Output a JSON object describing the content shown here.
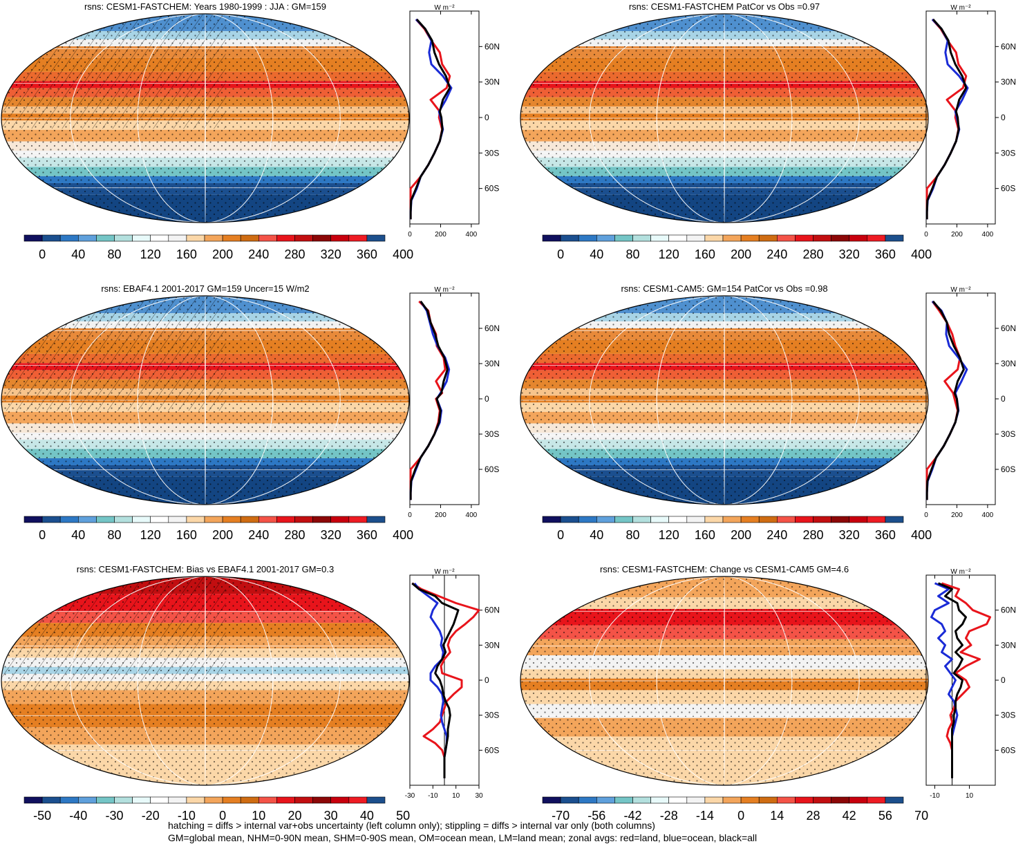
{
  "figure": {
    "footer": [
      "hatching = diffs > internal var+obs uncertainty (left column only); stippling = diffs > internal var only (both columns)",
      "GM=global mean, NHM=0-90N mean, SHM=0-90S mean, OM=ocean mean, LM=land mean; zonal avgs: red=land, blue=ocean, black=all"
    ],
    "zonal_units": "W m⁻²"
  },
  "colors": {
    "land": "#e8141b",
    "ocean": "#1a2bd6",
    "all": "#000000",
    "abs_palette": [
      "#10105e",
      "#1b4f8f",
      "#2d78c4",
      "#5fa0dc",
      "#74c5c6",
      "#b3e0de",
      "#e8fafa",
      "#ffffff",
      "#f3f3f3",
      "#fbd7a8",
      "#f3a55b",
      "#e57f22",
      "#cf6c12",
      "#f45347",
      "#e8141b",
      "#c20e10",
      "#8c0707",
      "#c8000d",
      "#ee1b23",
      "#1c4f8c"
    ],
    "diff_palette": [
      "#10105e",
      "#1b4f8f",
      "#2d78c4",
      "#5fa0dc",
      "#74c5c6",
      "#b3e0de",
      "#e8fafa",
      "#ffffff",
      "#f3f3f3",
      "#fbd7a8",
      "#f3a55b",
      "#e57f22",
      "#cf6c12",
      "#f45347",
      "#e8141b",
      "#c20e10",
      "#8c0707",
      "#c8000d",
      "#ee1b23",
      "#1c4f8c"
    ]
  },
  "chart_data": [
    {
      "type": "heatmap",
      "title": "rsns: CESM1-FASTCHEM: Years 1980-1999 : JJA : GM=159",
      "colorbar_labels": [
        "0",
        "40",
        "80",
        "120",
        "160",
        "200",
        "240",
        "280",
        "320",
        "360",
        "400"
      ],
      "palette": "abs",
      "hatched": true,
      "zonal": {
        "xlim": [
          0,
          450
        ],
        "xticks": [
          "0",
          "200",
          "400"
        ],
        "xtick_values": [
          0,
          200,
          400
        ],
        "yticks": [
          "60N",
          "30N",
          "0",
          "30S",
          "60S"
        ],
        "ytick_values": [
          60,
          30,
          0,
          -30,
          -60
        ],
        "lat": [
          83,
          75,
          65,
          55,
          45,
          35,
          25,
          15,
          5,
          0,
          -10,
          -20,
          -30,
          -40,
          -50,
          -60,
          -70,
          -80,
          -86
        ],
        "land": [
          40,
          95,
          140,
          195,
          210,
          260,
          240,
          135,
          195,
          190,
          210,
          195,
          160,
          120,
          70,
          5,
          5,
          5,
          5
        ],
        "ocean": [
          40,
          100,
          140,
          125,
          140,
          215,
          270,
          235,
          190,
          200,
          215,
          195,
          160,
          120,
          70,
          45,
          10,
          5,
          5
        ],
        "all": [
          45,
          100,
          145,
          160,
          190,
          235,
          260,
          215,
          195,
          205,
          212,
          195,
          160,
          120,
          70,
          40,
          8,
          5,
          5
        ]
      }
    },
    {
      "type": "heatmap",
      "title": "rsns: CESM1-FASTCHEM PatCor vs Obs =0.97",
      "colorbar_labels": [
        "0",
        "40",
        "80",
        "120",
        "160",
        "200",
        "240",
        "280",
        "320",
        "360",
        "400"
      ],
      "palette": "abs",
      "hatched": false,
      "zonal": {
        "xlim": [
          0,
          450
        ],
        "xticks": [
          "0",
          "200",
          "400"
        ],
        "xtick_values": [
          0,
          200,
          400
        ],
        "yticks": [
          "60N",
          "30N",
          "0",
          "30S",
          "60S"
        ],
        "ytick_values": [
          60,
          30,
          0,
          -30,
          -60
        ],
        "lat": [
          83,
          75,
          65,
          55,
          45,
          35,
          25,
          15,
          5,
          0,
          -10,
          -20,
          -30,
          -40,
          -50,
          -60,
          -70,
          -80,
          -86
        ],
        "land": [
          40,
          95,
          140,
          195,
          210,
          260,
          240,
          135,
          195,
          190,
          210,
          195,
          160,
          120,
          70,
          5,
          5,
          5,
          5
        ],
        "ocean": [
          40,
          100,
          140,
          125,
          140,
          215,
          270,
          235,
          190,
          200,
          215,
          195,
          160,
          120,
          70,
          45,
          10,
          5,
          5
        ],
        "all": [
          45,
          100,
          145,
          160,
          190,
          235,
          260,
          215,
          195,
          205,
          212,
          195,
          160,
          120,
          70,
          40,
          8,
          5,
          5
        ]
      }
    },
    {
      "type": "heatmap",
      "title": "rsns: EBAF4.1 2001-2017 GM=159 Uncer=15 W/m2",
      "colorbar_labels": [
        "0",
        "40",
        "80",
        "120",
        "160",
        "200",
        "240",
        "280",
        "320",
        "360",
        "400"
      ],
      "palette": "abs",
      "hatched": true,
      "zonal": {
        "xlim": [
          0,
          450
        ],
        "xticks": [
          "0",
          "200",
          "400"
        ],
        "xtick_values": [
          0,
          200,
          400
        ],
        "yticks": [
          "60N",
          "30N",
          "0",
          "30S",
          "60S"
        ],
        "ytick_values": [
          60,
          30,
          0,
          -30,
          -60
        ],
        "lat": [
          83,
          75,
          65,
          55,
          45,
          35,
          25,
          15,
          5,
          0,
          -10,
          -20,
          -30,
          -40,
          -50,
          -60,
          -70,
          -80,
          -86
        ],
        "land": [
          60,
          120,
          135,
          170,
          175,
          220,
          230,
          170,
          210,
          170,
          195,
          185,
          160,
          120,
          70,
          5,
          5,
          5,
          5
        ],
        "ocean": [
          70,
          110,
          130,
          150,
          180,
          230,
          255,
          240,
          200,
          175,
          205,
          195,
          160,
          120,
          70,
          40,
          10,
          5,
          5
        ],
        "all": [
          70,
          115,
          135,
          165,
          185,
          225,
          245,
          220,
          205,
          175,
          200,
          190,
          160,
          120,
          70,
          35,
          8,
          5,
          5
        ]
      }
    },
    {
      "type": "heatmap",
      "title": "rsns: CESM1-CAM5: GM=154 PatCor vs Obs =0.98",
      "colorbar_labels": [
        "0",
        "40",
        "80",
        "120",
        "160",
        "200",
        "240",
        "280",
        "320",
        "360",
        "400"
      ],
      "palette": "abs",
      "hatched": false,
      "zonal": {
        "xlim": [
          0,
          450
        ],
        "xticks": [
          "0",
          "200",
          "400"
        ],
        "xtick_values": [
          0,
          200,
          400
        ],
        "yticks": [
          "60N",
          "30N",
          "0",
          "30S",
          "60S"
        ],
        "ytick_values": [
          60,
          30,
          0,
          -30,
          -60
        ],
        "lat": [
          83,
          75,
          65,
          55,
          45,
          35,
          25,
          15,
          5,
          0,
          -10,
          -20,
          -30,
          -40,
          -50,
          -60,
          -70,
          -80,
          -86
        ],
        "land": [
          40,
          85,
          135,
          170,
          190,
          220,
          205,
          120,
          175,
          185,
          205,
          190,
          155,
          115,
          65,
          5,
          5,
          5,
          5
        ],
        "ocean": [
          40,
          100,
          135,
          130,
          150,
          210,
          265,
          230,
          190,
          200,
          210,
          190,
          155,
          115,
          65,
          40,
          10,
          5,
          5
        ],
        "all": [
          45,
          95,
          135,
          150,
          180,
          220,
          245,
          205,
          185,
          200,
          208,
          190,
          155,
          115,
          65,
          35,
          8,
          5,
          5
        ]
      }
    },
    {
      "type": "heatmap",
      "title": "rsns: CESM1-FASTCHEM: Bias vs EBAF4.1 2001-2017 GM=0.3",
      "colorbar_labels": [
        "-50",
        "-40",
        "-30",
        "-20",
        "-10",
        "0",
        "10",
        "20",
        "30",
        "40",
        "50"
      ],
      "palette": "diff",
      "hatched": true,
      "zonal": {
        "xlim": [
          -30,
          30
        ],
        "xticks": [
          "-30",
          "-10",
          "10",
          "30"
        ],
        "xtick_values": [
          -30,
          -10,
          10,
          30
        ],
        "yticks": [
          "60N",
          "30N",
          "0",
          "30S",
          "60S"
        ],
        "ytick_values": [
          60,
          30,
          0,
          -30,
          -60
        ],
        "lat": [
          83,
          78,
          72,
          66,
          60,
          54,
          48,
          42,
          36,
          30,
          24,
          18,
          12,
          6,
          0,
          -6,
          -12,
          -18,
          -24,
          -30,
          -36,
          -42,
          -48,
          -54,
          -60,
          -66,
          -72,
          -78,
          -84
        ],
        "land": [
          -28,
          -20,
          -5,
          10,
          30,
          25,
          18,
          10,
          5,
          3,
          5,
          0,
          -3,
          -2,
          15,
          15,
          8,
          2,
          0,
          -2,
          -4,
          -10,
          -18,
          -8,
          -2,
          0,
          0,
          0,
          0
        ],
        "ocean": [
          -26,
          -22,
          -14,
          -6,
          -10,
          -12,
          -8,
          -4,
          -2,
          -3,
          -1,
          -2,
          -8,
          -12,
          -12,
          -6,
          -2,
          -1,
          -2,
          -3,
          -2,
          0,
          2,
          2,
          1,
          0,
          0,
          0,
          0
        ],
        "all": [
          -28,
          -22,
          -8,
          -2,
          12,
          10,
          8,
          5,
          2,
          -1,
          1,
          -2,
          -6,
          -8,
          -4,
          -2,
          -1,
          1,
          4,
          5,
          4,
          3,
          3,
          2,
          1,
          0,
          0,
          0,
          0
        ]
      }
    },
    {
      "type": "heatmap",
      "title": "rsns: CESM1-FASTCHEM: Change vs CESM1-CAM5 GM=4.6",
      "colorbar_labels": [
        "-70",
        "-56",
        "-42",
        "-28",
        "-14",
        "0",
        "14",
        "28",
        "42",
        "56",
        "70"
      ],
      "palette": "diff",
      "hatched": false,
      "zonal": {
        "xlim": [
          -15,
          25
        ],
        "xticks": [
          "-10",
          "10"
        ],
        "xtick_values": [
          -10,
          10
        ],
        "yticks": [
          "60N",
          "30N",
          "0",
          "30S",
          "60S"
        ],
        "ytick_values": [
          60,
          30,
          0,
          -30,
          -60
        ],
        "lat": [
          83,
          78,
          72,
          66,
          60,
          54,
          48,
          42,
          36,
          30,
          24,
          18,
          12,
          6,
          0,
          -6,
          -12,
          -18,
          -24,
          -30,
          -36,
          -42,
          -48,
          -54,
          -60,
          -66,
          -72,
          -78,
          -84
        ],
        "land": [
          -6,
          4,
          2,
          8,
          12,
          22,
          20,
          10,
          8,
          11,
          5,
          16,
          8,
          2,
          8,
          10,
          6,
          2,
          1,
          -1,
          0,
          -2,
          -3,
          -1,
          0,
          0,
          0,
          0,
          0
        ],
        "ocean": [
          -10,
          -2,
          -8,
          -2,
          -10,
          -12,
          -6,
          -4,
          -8,
          -4,
          -6,
          0,
          -4,
          -1,
          2,
          0,
          -2,
          1,
          2,
          3,
          2,
          1,
          0,
          0,
          0,
          0,
          0,
          0,
          0
        ],
        "all": [
          -8,
          0,
          -4,
          3,
          4,
          8,
          6,
          2,
          3,
          6,
          2,
          6,
          4,
          1,
          6,
          5,
          3,
          2,
          2,
          1,
          1,
          0,
          0,
          0,
          0,
          0,
          0,
          0,
          0
        ]
      }
    }
  ]
}
